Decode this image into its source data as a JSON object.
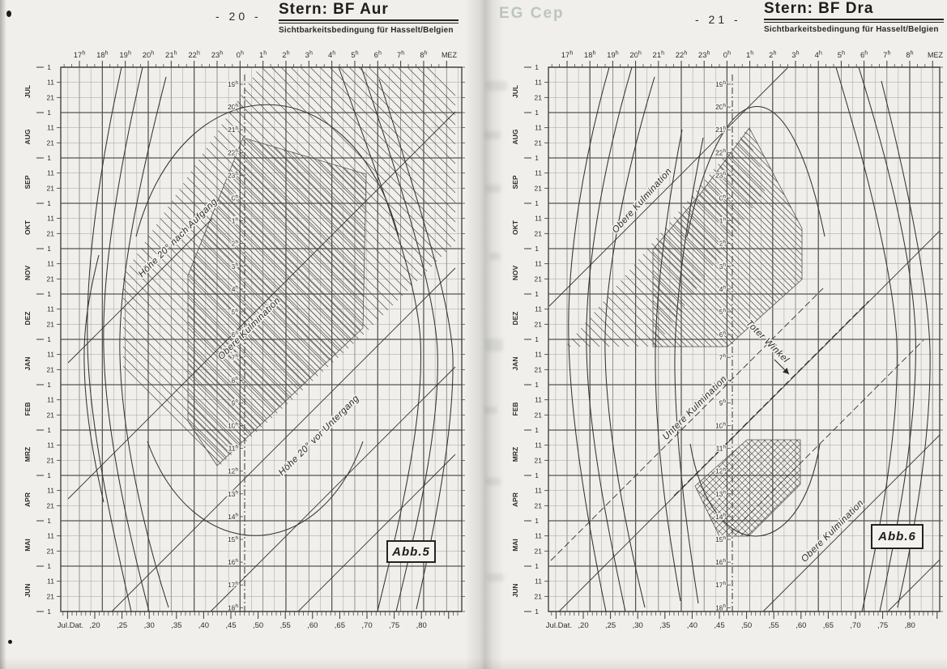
{
  "scan": {
    "ghost_text": "EG Cep"
  },
  "pages": [
    {
      "page_number": "- 20 -",
      "title": "Stern: BF Aur",
      "subtitle": "Sichtbarkeitsbedingung für Hasselt/Belgien",
      "figure_label": "Abb.5"
    },
    {
      "page_number": "- 21 -",
      "title": "Stern: BF Dra",
      "subtitle": "Sichtbarkeitsbedingung für Hasselt/Belgien",
      "figure_label": "Abb.6"
    }
  ],
  "chart_data": [
    {
      "type": "line",
      "subtype": "star-visibility-diagram",
      "star": "BF Aur",
      "title": "Sichtbarkeitsbedingung für Hasselt/Belgien",
      "figure_label": "Abb.5",
      "x_axis_top": {
        "label": "MEZ",
        "ticks": [
          "17h",
          "18h",
          "19h",
          "20h",
          "21h",
          "22h",
          "23h",
          "0h",
          "1h",
          "2h",
          "3h",
          "4h",
          "5h",
          "6h",
          "7h",
          "8h"
        ]
      },
      "x_axis_bottom": {
        "label": "Jul.Dat.",
        "ticks": [
          ",20",
          ",25",
          ",30",
          ",35",
          ",40",
          ",45",
          ",50",
          ",55",
          ",60",
          ",65",
          ",70",
          ",75",
          ",80"
        ]
      },
      "y_axis_left": {
        "months": [
          "JUL",
          "AUG",
          "SEP",
          "OKT",
          "NOV",
          "DEZ",
          "JAN",
          "FEB",
          "MRZ",
          "APR",
          "MAI",
          "JUN"
        ],
        "day_ticks": [
          "1",
          "11",
          "21"
        ]
      },
      "center_line_hours": [
        "19h",
        "20h",
        "21h",
        "22h",
        "23h",
        "0h",
        "1h",
        "2h",
        "3h",
        "4h",
        "5h",
        "6h",
        "7h",
        "8h",
        "9h",
        "10h",
        "11h",
        "12h",
        "13h",
        "14h",
        "15h",
        "16h",
        "17h",
        "18h"
      ],
      "annotations": [
        "Höhe 20° nach Aufgang",
        "Obere Kulmination",
        "Höhe 20° vor Untergang"
      ],
      "legend": "hatched region = star observable; curves = rise/set and twilight limits over the year JUL-JUN"
    },
    {
      "type": "line",
      "subtype": "star-visibility-diagram",
      "star": "BF Dra",
      "title": "Sichtbarkeitsbedingung für Hasselt/Belgien",
      "figure_label": "Abb.6",
      "x_axis_top": {
        "label": "MEZ",
        "ticks": [
          "17h",
          "18h",
          "19h",
          "20h",
          "21h",
          "22h",
          "23h",
          "0h",
          "1h",
          "2h",
          "3h",
          "4h",
          "5h",
          "6h",
          "7h",
          "8h"
        ]
      },
      "x_axis_bottom": {
        "label": "Jul.Dat.",
        "ticks": [
          ",20",
          ",25",
          ",30",
          ",35",
          ",40",
          ",45",
          ",50",
          ",55",
          ",60",
          ",65",
          ",70",
          ",75",
          ",80"
        ]
      },
      "y_axis_left": {
        "months": [
          "JUL",
          "AUG",
          "SEP",
          "OKT",
          "NOV",
          "DEZ",
          "JAN",
          "FEB",
          "MRZ",
          "APR",
          "MAI",
          "JUN"
        ],
        "day_ticks": [
          "1",
          "11",
          "21"
        ]
      },
      "center_line_hours": [
        "19h",
        "20h",
        "21h",
        "22h",
        "23h",
        "0h",
        "1h",
        "2h",
        "3h",
        "4h",
        "5h",
        "6h",
        "7h",
        "8h",
        "9h",
        "10h",
        "11h",
        "12h",
        "13h",
        "14h",
        "15h",
        "16h",
        "17h",
        "18h"
      ],
      "annotations": [
        "Obere Kulmination",
        "Toter Winkel",
        "Untere Kulmination",
        "Obere Kulmination"
      ],
      "legend": "hatched regions = culmination visibility windows; dashed diagonals mark Toter Winkel / Untere Kulmination"
    }
  ]
}
